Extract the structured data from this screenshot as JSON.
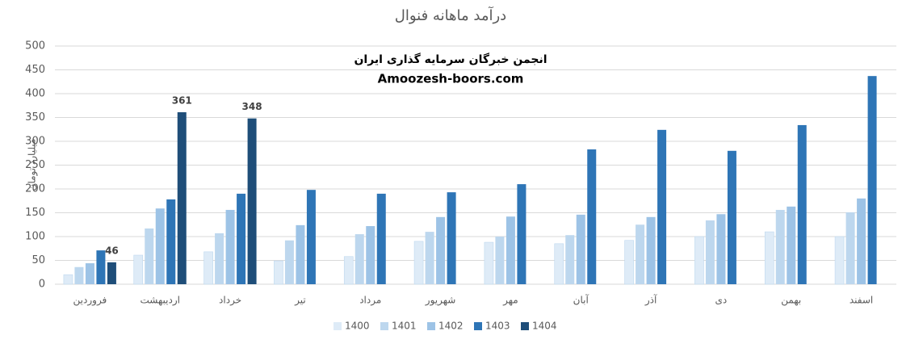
{
  "chart_data": {
    "type": "bar",
    "title": "درآمد ماهانه فنوال",
    "annotations": [
      "انجمن خبرگان سرمایه گذاری ایران",
      "Amoozesh-boors.com"
    ],
    "y_label": "میلیارد تومان",
    "categories": [
      "فروردین",
      "اردیبهشت",
      "خرداد",
      "تیر",
      "مرداد",
      "شهریور",
      "مهر",
      "آبان",
      "آذر",
      "دی",
      "بهمن",
      "اسفند"
    ],
    "series": [
      {
        "name": "1400",
        "color": "#deebf7",
        "values": [
          20,
          61,
          68,
          49,
          58,
          90,
          88,
          85,
          92,
          100,
          110,
          100
        ]
      },
      {
        "name": "1401",
        "color": "#bdd7ee",
        "values": [
          36,
          117,
          107,
          92,
          105,
          110,
          100,
          103,
          125,
          134,
          156,
          151
        ]
      },
      {
        "name": "1402",
        "color": "#9dc3e6",
        "values": [
          44,
          159,
          156,
          124,
          122,
          141,
          142,
          146,
          141,
          147,
          163,
          180
        ]
      },
      {
        "name": "1403",
        "color": "#2e75b6",
        "values": [
          71,
          178,
          190,
          198,
          190,
          193,
          210,
          283,
          324,
          280,
          334,
          437
        ]
      },
      {
        "name": "1404",
        "color": "#1f4e79",
        "values": [
          46,
          361,
          348,
          null,
          null,
          null,
          null,
          null,
          null,
          null,
          null,
          null
        ],
        "show_labels": true
      }
    ],
    "ylim": [
      0,
      500
    ],
    "yticks": [
      0,
      50,
      100,
      150,
      200,
      250,
      300,
      350,
      400,
      450,
      500
    ],
    "grid": true,
    "legend": "bottom"
  }
}
